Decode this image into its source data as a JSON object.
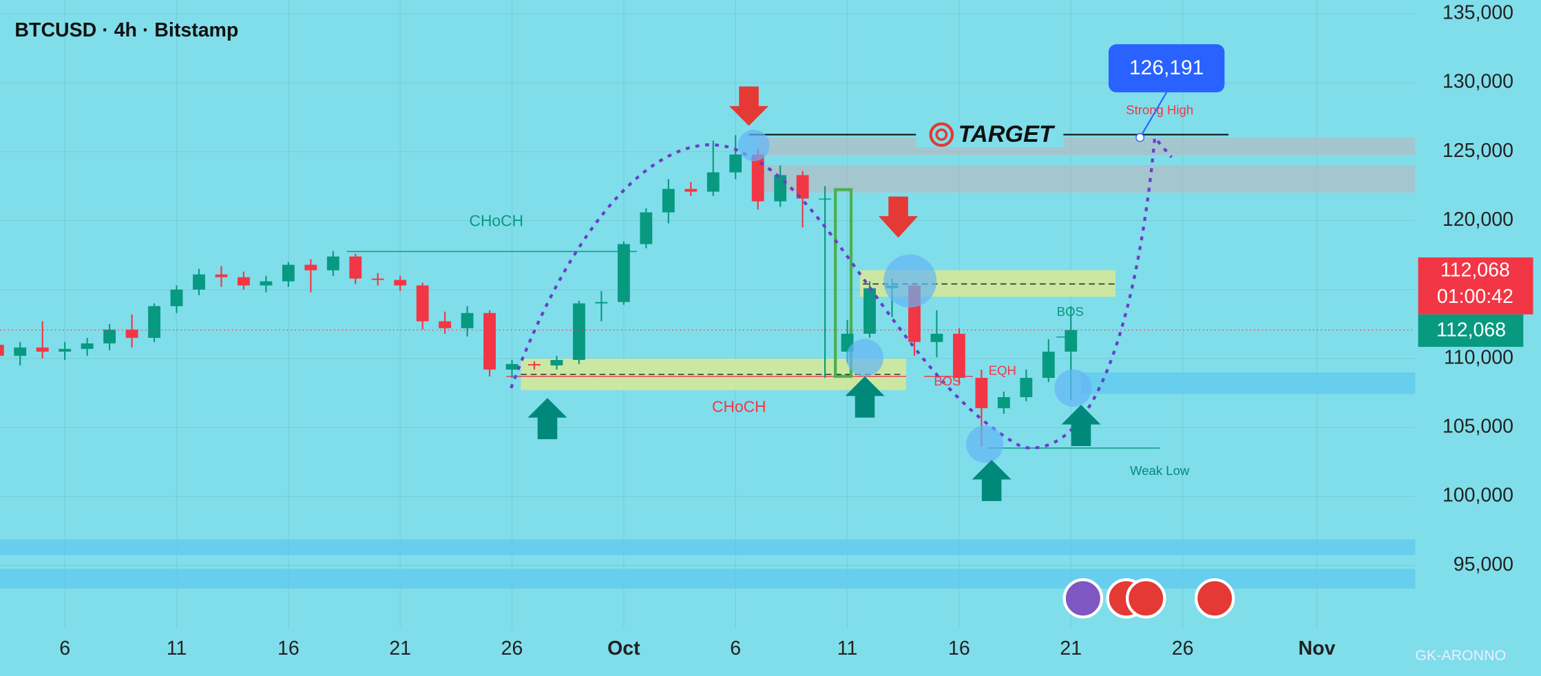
{
  "chart_data": {
    "type": "candlestick",
    "title": "BTCUSD · 4h · Bitstamp",
    "x": [
      3,
      4,
      5,
      6,
      7,
      8,
      9,
      10,
      11,
      12,
      13,
      14,
      15,
      16,
      17,
      18,
      19,
      20,
      21,
      22,
      23,
      24,
      25,
      26,
      27,
      28,
      29,
      30,
      31,
      32,
      33,
      34,
      35,
      36,
      37,
      38,
      39,
      40,
      41,
      42,
      43,
      44,
      45,
      46,
      47,
      48,
      49,
      50,
      51
    ],
    "open": [
      111000,
      110200,
      110800,
      110500,
      110700,
      111100,
      112100,
      111500,
      113800,
      115000,
      116100,
      115900,
      115300,
      115600,
      116800,
      116400,
      117400,
      115800,
      115700,
      115300,
      112700,
      112200,
      113300,
      109200,
      109600,
      109500,
      109900,
      114000,
      114100,
      118300,
      120600,
      122300,
      122100,
      123500,
      124800,
      121400,
      123300,
      121600,
      110500,
      111800,
      115100,
      115300,
      111200,
      111800,
      108600,
      106400,
      107200,
      108600,
      110500
    ],
    "high": [
      111800,
      111200,
      112700,
      111200,
      111500,
      112500,
      113200,
      114000,
      115300,
      116500,
      116700,
      116300,
      116000,
      117000,
      117200,
      117800,
      117600,
      116200,
      116000,
      115500,
      113400,
      113800,
      113500,
      109900,
      109800,
      110200,
      114200,
      114900,
      118500,
      120900,
      123000,
      122800,
      125800,
      126200,
      125200,
      124000,
      123600,
      122500,
      112800,
      115600,
      115800,
      115500,
      113500,
      112200,
      109200,
      107600,
      109200,
      111400,
      113800
    ],
    "low": [
      109800,
      109500,
      110000,
      109900,
      110200,
      110600,
      110800,
      111200,
      113300,
      114600,
      115200,
      115000,
      114800,
      115200,
      114800,
      116000,
      115400,
      115300,
      114900,
      112100,
      111800,
      111600,
      108700,
      108600,
      109200,
      109200,
      109600,
      112700,
      113900,
      118000,
      119800,
      121800,
      121800,
      123000,
      120800,
      121000,
      119500,
      108600,
      109700,
      111500,
      113000,
      110200,
      110100,
      108200,
      103600,
      106000,
      106900,
      108300,
      107000
    ],
    "close": [
      110200,
      110800,
      110500,
      110700,
      111100,
      112100,
      111500,
      113800,
      115000,
      116100,
      115900,
      115300,
      115600,
      116800,
      116400,
      117400,
      115800,
      115700,
      115300,
      112700,
      112200,
      113300,
      109200,
      109600,
      109500,
      109900,
      114000,
      114100,
      118300,
      120600,
      122300,
      122100,
      123500,
      124800,
      121400,
      123300,
      121600,
      121600,
      111800,
      115100,
      115300,
      111200,
      111800,
      108600,
      106400,
      107200,
      108600,
      110500,
      112068
    ],
    "up_color": "#089981",
    "down_color": "#f23645",
    "xlim": [
      3.1,
      66.4
    ],
    "xticks": [
      6,
      11,
      16,
      21,
      26,
      {
        "value": 31,
        "label": "Oct"
      },
      {
        "value": 36,
        "label": "6"
      },
      {
        "value": 41,
        "label": "11"
      },
      {
        "value": 46,
        "label": "16"
      },
      {
        "value": 51,
        "label": "21"
      },
      {
        "value": 56,
        "label": "26"
      },
      {
        "value": 62,
        "label": "Nov"
      }
    ],
    "ylim": [
      90400,
      136000
    ],
    "yticks": [
      {
        "value": 95000,
        "label": "95,000"
      },
      {
        "value": 100000,
        "label": "100,000"
      },
      {
        "value": 105000,
        "label": "105,000"
      },
      {
        "value": 110000,
        "label": "110,000"
      },
      {
        "value": 115000,
        "label": "115,000"
      },
      {
        "value": 120000,
        "label": "120,000"
      },
      {
        "value": 125000,
        "label": "125,000"
      },
      {
        "value": 130000,
        "label": "130,000"
      },
      {
        "value": 135000,
        "label": "135,000"
      }
    ],
    "grid": true,
    "last_price": {
      "value": 112068,
      "label": "112,068"
    },
    "countdown": "01:00:42",
    "annotations": {
      "choch_upper": "CHoCH",
      "choch_lower": "CHoCH",
      "target": "TARGET",
      "target_price": "126,191",
      "strong_high": "Strong High",
      "weak_low": "Weak Low",
      "bos_right": "BOS",
      "bos_mid": "BOS",
      "eqh": "EQH"
    },
    "watermark": "GK-ARONNO"
  }
}
